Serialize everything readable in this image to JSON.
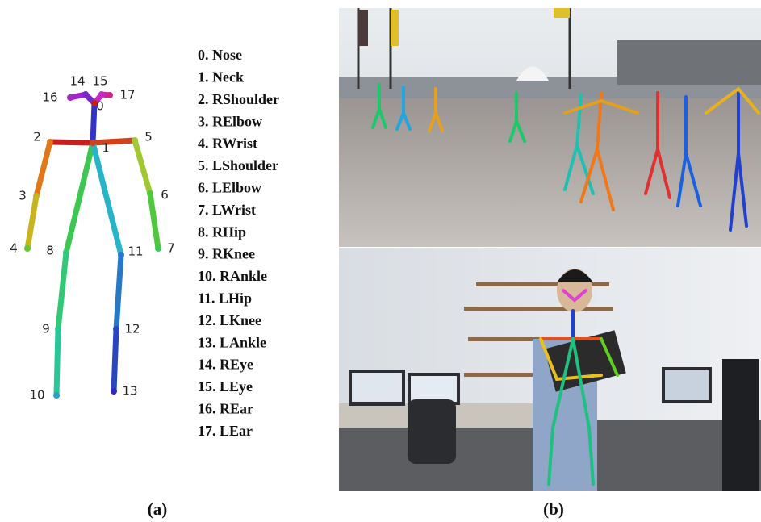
{
  "skeleton": {
    "nodes": [
      {
        "label": "0"
      },
      {
        "label": "1"
      },
      {
        "label": "2"
      },
      {
        "label": "3"
      },
      {
        "label": "4"
      },
      {
        "label": "5"
      },
      {
        "label": "6"
      },
      {
        "label": "7"
      },
      {
        "label": "8"
      },
      {
        "label": "9"
      },
      {
        "label": "10"
      },
      {
        "label": "11"
      },
      {
        "label": "12"
      },
      {
        "label": "13"
      },
      {
        "label": "14"
      },
      {
        "label": "15"
      },
      {
        "label": "16"
      },
      {
        "label": "17"
      }
    ]
  },
  "keypoint_list": [
    "0. Nose",
    "1. Neck",
    "2. RShoulder",
    "3. RElbow",
    "4. RWrist",
    "5. LShoulder",
    "6. LElbow",
    "7. LWrist",
    "8. RHip",
    "9. RKnee",
    "10. RAnkle",
    "11. LHip",
    "12. LKnee",
    "13. LAnkle",
    "14. REye",
    "15. LEye",
    "16. REar",
    "17. LEar"
  ],
  "captions": {
    "a": "(a)",
    "b": "(b)"
  }
}
